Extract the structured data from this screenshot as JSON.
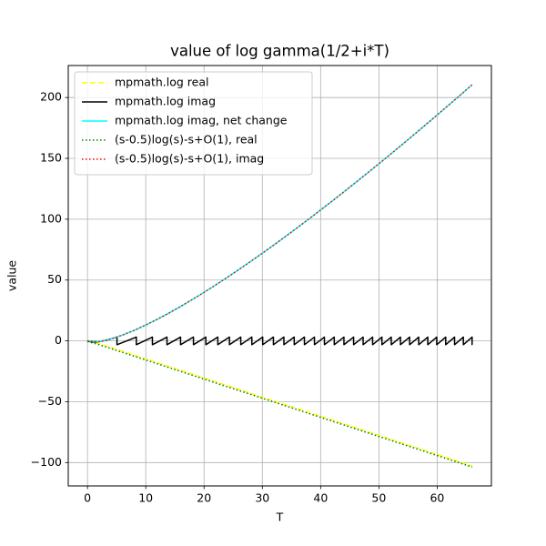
{
  "chart_data": {
    "type": "line",
    "title": "value of log gamma(1/2+i*T)",
    "xlabel": "T",
    "ylabel": "value",
    "x": [
      0,
      2,
      4,
      6,
      8,
      10,
      12,
      14,
      16,
      18,
      20,
      22,
      24,
      26,
      28,
      30,
      32,
      34,
      36,
      38,
      40,
      42,
      44,
      46,
      48,
      50,
      52,
      54,
      56,
      58,
      60,
      62,
      64,
      66
    ],
    "series": [
      {
        "name": "mpmath.log real",
        "color": "#ffff00",
        "linestyle": "dashed",
        "values": [
          0.57,
          -2.22,
          -5.36,
          -8.51,
          -11.65,
          -14.79,
          -17.93,
          -21.07,
          -24.21,
          -27.36,
          -30.5,
          -33.64,
          -36.78,
          -39.92,
          -43.06,
          -46.2,
          -49.35,
          -52.49,
          -55.63,
          -58.77,
          -61.91,
          -65.05,
          -68.2,
          -71.34,
          -74.48,
          -77.62,
          -80.76,
          -83.9,
          -87.04,
          -90.19,
          -93.33,
          -96.47,
          -99.61,
          -102.75
        ]
      },
      {
        "name": "mpmath.log imag",
        "color": "#000000",
        "linestyle": "solid",
        "x": [
          0,
          0.5,
          1,
          1.5,
          2,
          2.5,
          3,
          3.5,
          4,
          4.5,
          5.06,
          5.06,
          8.38,
          8.38,
          11.14,
          11.14,
          13.64,
          13.64,
          15.97,
          15.97,
          18.18,
          18.18,
          20.31,
          20.31,
          22.36,
          22.36,
          24.36,
          24.36,
          26.3,
          26.3,
          28.2,
          28.2,
          30.06,
          30.06,
          31.9,
          31.9,
          33.7,
          33.7,
          35.47,
          35.47,
          37.22,
          37.22,
          38.94,
          38.94,
          40.65,
          40.65,
          42.34,
          42.34,
          44,
          44,
          45.66,
          45.66,
          47.29,
          47.29,
          48.92,
          48.92,
          50.52,
          50.52,
          52.12,
          52.12,
          53.7,
          53.7,
          55.27,
          55.27,
          56.83,
          56.83,
          58.39,
          58.39,
          59.92,
          59.92,
          61.46,
          61.46,
          62.98,
          62.98,
          64.49,
          64.49,
          65.99,
          65.99,
          66
        ],
        "values": [
          0,
          -0.7,
          -0.96,
          -0.86,
          -0.59,
          -0.19,
          0.31,
          0.9,
          1.56,
          2.28,
          3.14,
          -3.14,
          3.14,
          -3.14,
          3.14,
          -3.14,
          3.14,
          -3.14,
          3.14,
          -3.14,
          3.14,
          -3.14,
          3.14,
          -3.14,
          3.14,
          -3.14,
          3.14,
          -3.14,
          3.14,
          -3.14,
          3.14,
          -3.14,
          3.14,
          -3.14,
          3.14,
          -3.14,
          3.14,
          -3.14,
          3.14,
          -3.14,
          3.14,
          -3.14,
          3.14,
          -3.14,
          3.14,
          -3.14,
          3.14,
          -3.14,
          3.14,
          -3.14,
          3.14,
          -3.14,
          3.14,
          -3.14,
          3.14,
          -3.14,
          3.14,
          -3.14,
          3.14,
          -3.14,
          3.14,
          -3.14,
          3.14,
          -3.14,
          3.14,
          -3.14,
          3.14,
          -3.14,
          3.14,
          -3.14,
          3.14,
          -3.14,
          3.14,
          -3.14,
          3.14,
          -3.14,
          3.14,
          -3.14,
          -3.11
        ]
      },
      {
        "name": "mpmath.log imag, net change",
        "color": "#00ffff",
        "linestyle": "solid",
        "values": [
          0,
          -0.59,
          1.56,
          4.76,
          8.64,
          13.03,
          17.82,
          22.95,
          28.36,
          34.03,
          39.91,
          46,
          52.27,
          58.71,
          65.3,
          72.04,
          78.9,
          85.9,
          93.01,
          100.23,
          107.56,
          114.98,
          122.5,
          130.12,
          137.82,
          145.6,
          153.46,
          161.41,
          169.42,
          177.5,
          185.66,
          193.88,
          202.17,
          210.52
        ]
      },
      {
        "name": "(s-0.5)log(s)-s+O(1), real",
        "color": "#008000",
        "linestyle": "dotted",
        "values": [
          -0.5,
          -3.15,
          -6.28,
          -9.42,
          -12.57,
          -15.71,
          -18.85,
          -21.99,
          -25.13,
          -28.27,
          -31.42,
          -34.56,
          -37.7,
          -40.84,
          -43.98,
          -47.12,
          -50.27,
          -53.41,
          -56.55,
          -59.69,
          -62.83,
          -65.97,
          -69.12,
          -72.26,
          -75.4,
          -78.54,
          -81.68,
          -84.82,
          -87.96,
          -91.11,
          -94.25,
          -97.39,
          -100.53,
          -103.67
        ]
      },
      {
        "name": "(s-0.5)log(s)-s+O(1), imag",
        "color": "#ff0000",
        "linestyle": "dotted",
        "values": [
          0,
          -0.55,
          1.58,
          4.77,
          8.65,
          13.03,
          17.82,
          22.95,
          28.36,
          34.03,
          39.91,
          46,
          52.27,
          58.71,
          65.3,
          72.04,
          78.9,
          85.9,
          93.01,
          100.23,
          107.56,
          114.98,
          122.5,
          130.12,
          137.82,
          145.6,
          153.46,
          161.41,
          169.42,
          177.5,
          185.66,
          193.88,
          202.17,
          210.52
        ]
      }
    ],
    "xlim": [
      -3.3,
      69.3
    ],
    "ylim": [
      -119.2,
      226.3
    ],
    "xticks": [
      0,
      10,
      20,
      30,
      40,
      50,
      60
    ],
    "yticks": [
      {
        "value": -100,
        "label": "−100"
      },
      {
        "value": -50,
        "label": "−50"
      },
      0,
      50,
      100,
      150,
      200
    ],
    "grid": true,
    "legend": "upper left"
  }
}
